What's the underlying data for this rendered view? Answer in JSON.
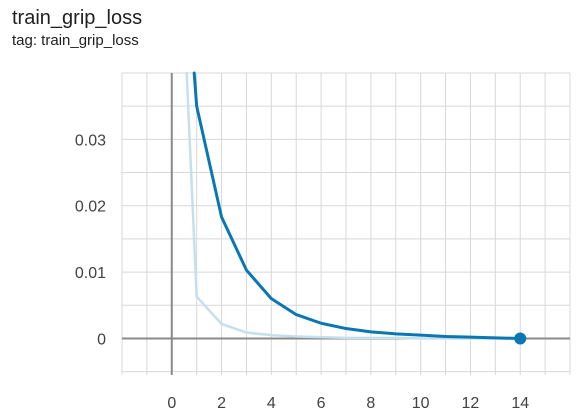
{
  "card": {
    "title": "train_grip_loss",
    "tag_label": "tag: train_grip_loss"
  },
  "chart_data": {
    "type": "line",
    "title": "train_grip_loss",
    "xlabel": "",
    "ylabel": "",
    "x_ticks": [
      0,
      2,
      4,
      6,
      8,
      10,
      12,
      14
    ],
    "y_ticks": [
      0,
      0.01,
      0.02,
      0.03
    ],
    "y_tick_labels": [
      "0",
      "0.01",
      "0.02",
      "0.03"
    ],
    "xlim": [
      -2,
      16
    ],
    "ylim": [
      -0.0055,
      0.04
    ],
    "grid": true,
    "series": [
      {
        "role": "smoothed",
        "color": "#0b77b2",
        "x": [
          0.9,
          1,
          2,
          3,
          4,
          5,
          6,
          7,
          8,
          9,
          10,
          11,
          12,
          13,
          14
        ],
        "y": [
          0.04,
          0.035,
          0.0183,
          0.0103,
          0.006,
          0.0036,
          0.0023,
          0.0015,
          0.001,
          0.0007,
          0.0005,
          0.0003,
          0.0002,
          0.0001,
          0.0
        ]
      },
      {
        "role": "raw",
        "color": "#c5dfee",
        "x": [
          0.6,
          1,
          2,
          3,
          4,
          5,
          6,
          7,
          8,
          9,
          10,
          11,
          12,
          13,
          14
        ],
        "y": [
          0.04,
          0.0063,
          0.0022,
          0.0009,
          0.0005,
          0.0003,
          0.0002,
          0.0001,
          0.0001,
          0.0001,
          0.0,
          0.0,
          0.0,
          0.0,
          0.0
        ]
      }
    ],
    "last_point": {
      "x": 14,
      "y": 0.0
    }
  }
}
